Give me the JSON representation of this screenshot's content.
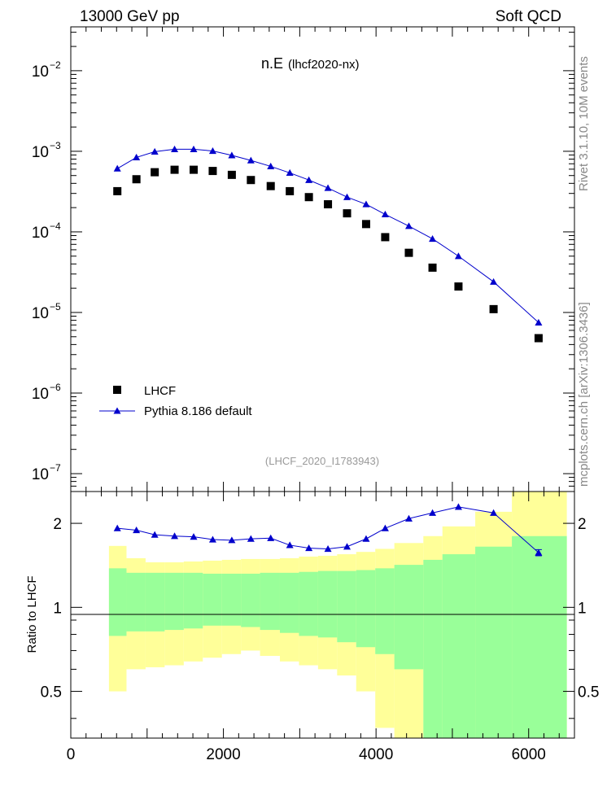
{
  "header": {
    "left": "13000 GeV pp",
    "right": "Soft QCD"
  },
  "side_text": {
    "rivet": "Rivet 3.1.10,  10M events",
    "mcplots": "mcplots.cern.ch [arXiv:1306.3436]"
  },
  "chart_data": [
    {
      "type": "scatter",
      "title": "n.E",
      "subtitle": "(lhcf2020-nx)",
      "analysis_label": "(LHCF_2020_I1783943)",
      "xlabel": "",
      "ylabel": "",
      "log_y": true,
      "xlim": [
        0,
        6600
      ],
      "ylim": [
        6e-08,
        0.035
      ],
      "y_ticks": [
        {
          "value": 1e-07,
          "base": "10",
          "exp": "−7"
        },
        {
          "value": 1e-06,
          "base": "10",
          "exp": "−6"
        },
        {
          "value": 1e-05,
          "base": "10",
          "exp": "−5"
        },
        {
          "value": 0.0001,
          "base": "10",
          "exp": "−4"
        },
        {
          "value": 0.001,
          "base": "10",
          "exp": "−3"
        },
        {
          "value": 0.01,
          "base": "10",
          "exp": "−2"
        }
      ],
      "legend_position": "bottom-left",
      "series": [
        {
          "name": "LHCF",
          "color": "#000000",
          "marker": "square",
          "x": [
            610,
            860,
            1100,
            1360,
            1610,
            1860,
            2110,
            2360,
            2620,
            2870,
            3120,
            3370,
            3620,
            3870,
            4120,
            4430,
            4740,
            5080,
            5540,
            6130
          ],
          "y": [
            0.00032,
            0.00045,
            0.00055,
            0.00059,
            0.00059,
            0.00057,
            0.00051,
            0.00044,
            0.00037,
            0.00032,
            0.00027,
            0.00022,
            0.00017,
            0.000125,
            8.6e-05,
            5.5e-05,
            3.6e-05,
            2.1e-05,
            1.1e-05,
            4.8e-06
          ]
        },
        {
          "name": "Pythia 8.186 default",
          "color": "#0000cc",
          "marker": "triangle",
          "x": [
            610,
            860,
            1100,
            1360,
            1610,
            1860,
            2110,
            2360,
            2620,
            2870,
            3120,
            3370,
            3620,
            3870,
            4120,
            4430,
            4740,
            5080,
            5540,
            6130
          ],
          "y": [
            0.00061,
            0.00084,
            0.00099,
            0.00106,
            0.00106,
            0.00101,
            0.00089,
            0.00077,
            0.00065,
            0.00054,
            0.00044,
            0.00035,
            0.00027,
            0.00022,
            0.000165,
            0.000118,
            8.2e-05,
            5e-05,
            2.4e-05,
            7.5e-06
          ]
        }
      ]
    },
    {
      "type": "line",
      "title": "",
      "xlabel": "",
      "ylabel": "Ratio to LHCF",
      "log_y": true,
      "xlim": [
        0,
        6600
      ],
      "ylim": [
        0.34,
        2.6
      ],
      "x_ticks": [
        0,
        2000,
        4000,
        6000
      ],
      "x_tick_labels": [
        "0",
        "2000",
        "4000",
        "6000"
      ],
      "y_ticks": [
        0.5,
        1,
        2
      ],
      "y_tick_labels": [
        "0.5",
        "1",
        "2"
      ],
      "band_edges": [
        500,
        730,
        980,
        1230,
        1480,
        1730,
        1980,
        2230,
        2480,
        2740,
        2990,
        3240,
        3490,
        3740,
        3990,
        4240,
        4620,
        4870,
        5300,
        5780,
        6500
      ],
      "green_band": {
        "color": "#99ff99",
        "upper": [
          1.38,
          1.33,
          1.33,
          1.33,
          1.33,
          1.32,
          1.32,
          1.32,
          1.33,
          1.33,
          1.34,
          1.35,
          1.35,
          1.36,
          1.38,
          1.42,
          1.48,
          1.55,
          1.65,
          1.8
        ],
        "lower": [
          0.79,
          0.82,
          0.82,
          0.83,
          0.84,
          0.86,
          0.86,
          0.85,
          0.83,
          0.81,
          0.79,
          0.78,
          0.75,
          0.72,
          0.68,
          0.6,
          0.2,
          0.2,
          0.2,
          0.2
        ]
      },
      "yellow_band": {
        "color": "#ffff99",
        "upper": [
          1.66,
          1.5,
          1.45,
          1.45,
          1.46,
          1.47,
          1.48,
          1.49,
          1.49,
          1.5,
          1.52,
          1.53,
          1.55,
          1.58,
          1.62,
          1.7,
          1.8,
          1.95,
          2.2,
          2.6
        ],
        "lower": [
          0.5,
          0.6,
          0.61,
          0.62,
          0.64,
          0.66,
          0.68,
          0.7,
          0.67,
          0.64,
          0.62,
          0.6,
          0.57,
          0.5,
          0.37,
          0.3,
          0.2,
          0.2,
          0.2,
          0.2
        ]
      },
      "series": [
        {
          "name": "Pythia 8.186 default",
          "color": "#0000cc",
          "marker": "triangle",
          "x": [
            610,
            860,
            1100,
            1360,
            1610,
            1860,
            2110,
            2360,
            2620,
            2870,
            3120,
            3370,
            3620,
            3870,
            4120,
            4430,
            4740,
            5080,
            5540,
            6130
          ],
          "y": [
            1.92,
            1.89,
            1.82,
            1.8,
            1.79,
            1.75,
            1.74,
            1.76,
            1.77,
            1.67,
            1.63,
            1.62,
            1.65,
            1.76,
            1.92,
            2.08,
            2.18,
            2.29,
            2.18,
            1.57
          ],
          "errors": [
            0,
            0,
            0,
            0,
            0,
            0,
            0,
            0,
            0,
            0,
            0,
            0,
            0,
            0,
            0,
            0,
            0,
            0,
            0,
            0.04
          ]
        }
      ]
    }
  ]
}
